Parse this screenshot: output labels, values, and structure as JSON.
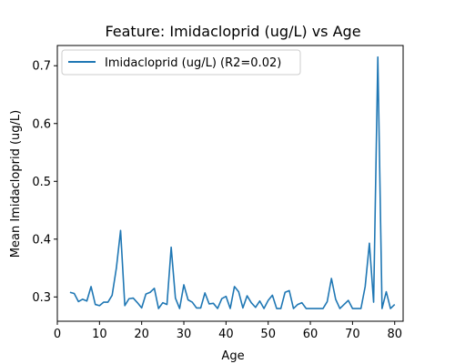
{
  "chart_data": {
    "type": "line",
    "title": "Feature: Imidacloprid (ug/L) vs Age",
    "xlabel": "Age",
    "ylabel": "Mean Imidacloprid (ug/L)",
    "xlim": [
      0,
      82
    ],
    "ylim": [
      0.258,
      0.735
    ],
    "xticks": [
      0,
      10,
      20,
      30,
      40,
      50,
      60,
      70,
      80
    ],
    "yticks": [
      0.3,
      0.4,
      0.5,
      0.6,
      0.7
    ],
    "ytick_labels": [
      "0.3",
      "0.4",
      "0.5",
      "0.6",
      "0.7"
    ],
    "grid": false,
    "legend": {
      "placement": "top-left",
      "entries": [
        "Imidacloprid (ug/L) (R2=0.02)"
      ]
    },
    "series": [
      {
        "name": "Imidacloprid (ug/L) (R2=0.02)",
        "color": "#1f77b4",
        "x": [
          3,
          4,
          5,
          6,
          7,
          8,
          9,
          10,
          11,
          12,
          13,
          14,
          15,
          16,
          17,
          18,
          19,
          20,
          21,
          22,
          23,
          24,
          25,
          26,
          27,
          28,
          29,
          30,
          31,
          32,
          33,
          34,
          35,
          36,
          37,
          38,
          39,
          40,
          41,
          42,
          43,
          44,
          45,
          46,
          47,
          48,
          49,
          50,
          51,
          52,
          53,
          54,
          55,
          56,
          57,
          58,
          59,
          60,
          61,
          62,
          63,
          64,
          65,
          66,
          67,
          68,
          69,
          70,
          71,
          72,
          73,
          74,
          75,
          76,
          77,
          78,
          79,
          80
        ],
        "y": [
          0.308,
          0.306,
          0.292,
          0.296,
          0.293,
          0.318,
          0.287,
          0.285,
          0.291,
          0.291,
          0.303,
          0.35,
          0.415,
          0.285,
          0.297,
          0.298,
          0.29,
          0.281,
          0.305,
          0.308,
          0.315,
          0.28,
          0.29,
          0.287,
          0.386,
          0.298,
          0.28,
          0.321,
          0.295,
          0.291,
          0.281,
          0.281,
          0.307,
          0.288,
          0.289,
          0.28,
          0.297,
          0.301,
          0.28,
          0.318,
          0.309,
          0.281,
          0.302,
          0.29,
          0.282,
          0.293,
          0.28,
          0.294,
          0.303,
          0.28,
          0.28,
          0.308,
          0.311,
          0.28,
          0.287,
          0.29,
          0.28,
          0.28,
          0.28,
          0.28,
          0.28,
          0.292,
          0.332,
          0.296,
          0.28,
          0.287,
          0.294,
          0.28,
          0.28,
          0.28,
          0.318,
          0.393,
          0.291,
          0.715,
          0.28,
          0.309,
          0.28,
          0.287
        ]
      }
    ]
  }
}
